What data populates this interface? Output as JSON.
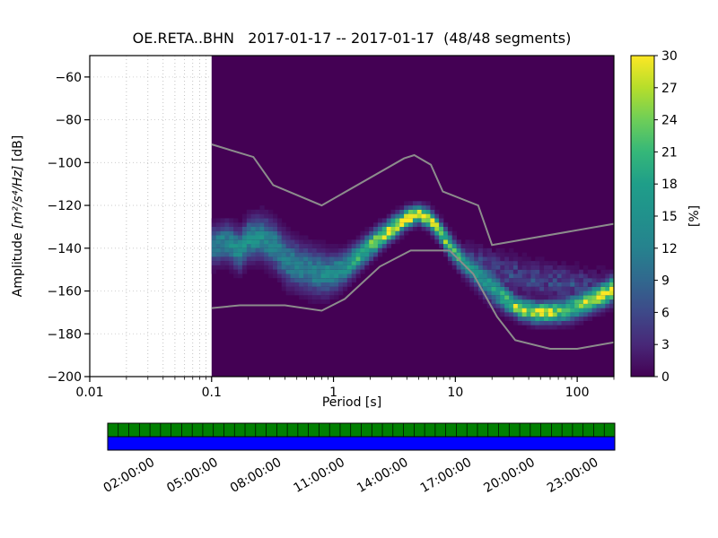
{
  "figure": {
    "title": "OE.RETA..BHN   2017-01-17 -- 2017-01-17  (48/48 segments)"
  },
  "chart_data": {
    "type": "heatmap",
    "title": "OE.RETA..BHN   2017-01-17 -- 2017-01-17  (48/48 segments)",
    "xlabel": "Period [s]",
    "ylabel": "Amplitude [m²/s⁴/Hz] [dB]",
    "ylabel_prefix": "Amplitude ",
    "ylabel_units": "[m²/s⁴/Hz]",
    "ylabel_suffix": " [dB]",
    "xscale": "log",
    "xlim": [
      0.01,
      200
    ],
    "ylim": [
      -200,
      -50
    ],
    "xticks": [
      0.01,
      0.1,
      1,
      10,
      100
    ],
    "xtick_labels": [
      "0.01",
      "0.1",
      "1",
      "10",
      "100"
    ],
    "yticks": [
      -200,
      -180,
      -160,
      -140,
      -120,
      -100,
      -80,
      -60
    ],
    "data_period_range": [
      0.1,
      200
    ],
    "colormap": "viridis",
    "background_color": "#440154",
    "colorbar": {
      "label": "[%]",
      "min": 0,
      "max": 30,
      "ticks": [
        0,
        3,
        6,
        9,
        12,
        15,
        18,
        21,
        24,
        27,
        30
      ]
    },
    "mode_ridge": [
      [
        0.1,
        -139
      ],
      [
        0.13,
        -137
      ],
      [
        0.17,
        -141
      ],
      [
        0.2,
        -136
      ],
      [
        0.26,
        -135
      ],
      [
        0.33,
        -139
      ],
      [
        0.42,
        -146
      ],
      [
        0.55,
        -149
      ],
      [
        0.7,
        -151
      ],
      [
        0.9,
        -152
      ],
      [
        1.2,
        -150
      ],
      [
        1.6,
        -144
      ],
      [
        2.2,
        -137
      ],
      [
        3.0,
        -131
      ],
      [
        4.0,
        -126
      ],
      [
        5.0,
        -124
      ],
      [
        6.0,
        -126
      ],
      [
        7.5,
        -132
      ],
      [
        9.0,
        -139
      ],
      [
        11.0,
        -145
      ],
      [
        13.0,
        -149
      ],
      [
        16.0,
        -153
      ],
      [
        20.0,
        -158
      ],
      [
        26.0,
        -164
      ],
      [
        33.0,
        -168
      ],
      [
        45.0,
        -170
      ],
      [
        60.0,
        -170
      ],
      [
        80.0,
        -169
      ],
      [
        100.0,
        -167
      ],
      [
        130.0,
        -164
      ],
      [
        160.0,
        -162
      ],
      [
        200.0,
        -159
      ]
    ],
    "ridge_intensity_pct": [
      [
        0.1,
        12
      ],
      [
        0.15,
        14
      ],
      [
        0.22,
        15
      ],
      [
        0.33,
        13
      ],
      [
        0.5,
        12
      ],
      [
        0.7,
        13
      ],
      [
        1.0,
        14
      ],
      [
        1.5,
        18
      ],
      [
        2.2,
        25
      ],
      [
        3.0,
        29
      ],
      [
        5.0,
        30
      ],
      [
        7.0,
        28
      ],
      [
        9.0,
        22
      ],
      [
        12.0,
        18
      ],
      [
        16.0,
        16
      ],
      [
        22.0,
        17
      ],
      [
        30.0,
        26
      ],
      [
        45.0,
        29
      ],
      [
        60.0,
        28
      ],
      [
        80.0,
        22
      ],
      [
        100.0,
        24
      ],
      [
        140.0,
        27
      ],
      [
        200.0,
        30
      ]
    ],
    "ridge_spread_db": [
      [
        0.1,
        5.0
      ],
      [
        0.2,
        5.5
      ],
      [
        0.4,
        6.5
      ],
      [
        0.8,
        6.0
      ],
      [
        1.2,
        4.5
      ],
      [
        2.0,
        3.5
      ],
      [
        5.0,
        2.5
      ],
      [
        8.0,
        3.0
      ],
      [
        12.0,
        3.5
      ],
      [
        20.0,
        4.5
      ],
      [
        30.0,
        3.0
      ],
      [
        60.0,
        3.0
      ],
      [
        100.0,
        3.5
      ],
      [
        200.0,
        3.5
      ]
    ],
    "secondary_band": {
      "from_period": 12,
      "center": [
        [
          12,
          -146
        ],
        [
          25,
          -151
        ],
        [
          50,
          -155
        ],
        [
          100,
          -158
        ],
        [
          200,
          -160
        ]
      ],
      "spread_db": 5,
      "intensity_pct": 5
    },
    "noise_models": {
      "color": "#8c8c8c",
      "high_noise_model": [
        [
          0.1,
          -91.5
        ],
        [
          0.22,
          -97.4
        ],
        [
          0.32,
          -110.5
        ],
        [
          0.8,
          -120.0
        ],
        [
          3.8,
          -98.0
        ],
        [
          4.6,
          -96.5
        ],
        [
          6.3,
          -101.0
        ],
        [
          7.9,
          -113.5
        ],
        [
          15.4,
          -120.0
        ],
        [
          20.0,
          -138.5
        ],
        [
          200.0,
          -128.6
        ]
      ],
      "low_noise_model": [
        [
          0.1,
          -168.0
        ],
        [
          0.17,
          -166.7
        ],
        [
          0.4,
          -166.7
        ],
        [
          0.8,
          -169.2
        ],
        [
          1.24,
          -163.7
        ],
        [
          2.4,
          -148.6
        ],
        [
          4.3,
          -141.1
        ],
        [
          9.0,
          -141.1
        ],
        [
          14.0,
          -152.0
        ],
        [
          22.0,
          -172.0
        ],
        [
          31.0,
          -183.0
        ],
        [
          60.0,
          -187.0
        ],
        [
          100.0,
          -187.0
        ],
        [
          200.0,
          -184.0
        ]
      ]
    }
  },
  "timeline": {
    "labels": [
      "02:00:00",
      "05:00:00",
      "08:00:00",
      "11:00:00",
      "14:00:00",
      "17:00:00",
      "20:00:00",
      "23:00:00"
    ],
    "label_hours": [
      2,
      5,
      8,
      11,
      14,
      17,
      20,
      23
    ],
    "hours_range": [
      0,
      24
    ],
    "segment_ticks": 48,
    "top_color": "#008000",
    "bottom_color": "#0000ff"
  }
}
